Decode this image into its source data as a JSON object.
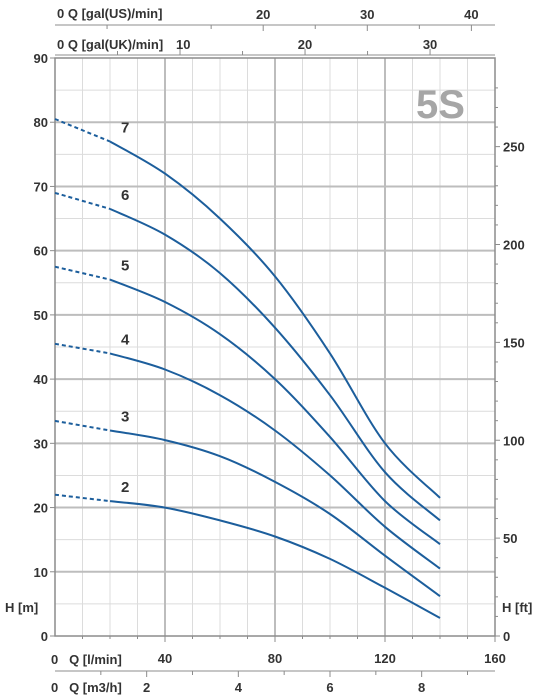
{
  "model": "5S",
  "colors": {
    "curve": "#1c5e9c",
    "grid": "#bdbdbd",
    "frame": "#8c8c8c",
    "minor_grid": "#dcdcdc",
    "text": "#333333",
    "model_label": "#a6a6a6"
  },
  "axes": {
    "top_us_label": "0 Q [gal(US)/min]",
    "top_uk_label": "0 Q [gal(UK)/min]",
    "left_label": "H [m]",
    "right_label": "H [ft]",
    "bottom_lmin_label": "0   Q [l/min]",
    "bottom_m3h_label": "0   Q [m3/h]"
  },
  "chart_data": {
    "type": "line",
    "title": "5S",
    "xlabel": "Q [l/min]",
    "ylabel": "H [m]",
    "xlim": [
      0,
      160
    ],
    "ylim": [
      0,
      90
    ],
    "grid": true,
    "x_ticks": [
      40,
      80,
      120,
      160
    ],
    "y_ticks": [
      0,
      10,
      20,
      30,
      40,
      50,
      60,
      70,
      80,
      90
    ],
    "ft_ticks": [
      0,
      50,
      100,
      150,
      200,
      250
    ],
    "m3h_ticks": [
      2,
      4,
      6,
      8
    ],
    "us_ticks": [
      20,
      30,
      40
    ],
    "uk_ticks": [
      10,
      20,
      30
    ],
    "series": [
      {
        "name": "2",
        "dashed_until": 20,
        "points": [
          [
            0,
            22
          ],
          [
            20,
            21
          ],
          [
            40,
            20
          ],
          [
            60,
            18
          ],
          [
            80,
            15.5
          ],
          [
            100,
            12
          ],
          [
            120,
            7.5
          ],
          [
            140,
            2.8
          ]
        ]
      },
      {
        "name": "3",
        "dashed_until": 20,
        "points": [
          [
            0,
            33.5
          ],
          [
            20,
            32
          ],
          [
            40,
            30.5
          ],
          [
            60,
            28
          ],
          [
            80,
            24
          ],
          [
            100,
            19
          ],
          [
            120,
            12.5
          ],
          [
            140,
            6.2
          ]
        ]
      },
      {
        "name": "4",
        "dashed_until": 20,
        "points": [
          [
            0,
            45.5
          ],
          [
            20,
            44
          ],
          [
            40,
            41.5
          ],
          [
            60,
            37.5
          ],
          [
            80,
            32
          ],
          [
            100,
            25
          ],
          [
            120,
            17
          ],
          [
            140,
            10.5
          ]
        ]
      },
      {
        "name": "5",
        "dashed_until": 20,
        "points": [
          [
            0,
            57.5
          ],
          [
            20,
            55.5
          ],
          [
            40,
            52
          ],
          [
            60,
            47
          ],
          [
            80,
            40
          ],
          [
            100,
            31
          ],
          [
            120,
            21
          ],
          [
            140,
            14.3
          ]
        ]
      },
      {
        "name": "6",
        "dashed_until": 20,
        "points": [
          [
            0,
            69
          ],
          [
            20,
            66.5
          ],
          [
            40,
            62.5
          ],
          [
            60,
            56.5
          ],
          [
            80,
            48
          ],
          [
            100,
            37.5
          ],
          [
            120,
            25.5
          ],
          [
            140,
            18
          ]
        ]
      },
      {
        "name": "7",
        "dashed_until": 20,
        "points": [
          [
            0,
            80.5
          ],
          [
            20,
            77
          ],
          [
            40,
            72
          ],
          [
            60,
            65
          ],
          [
            80,
            56
          ],
          [
            100,
            44
          ],
          [
            120,
            30
          ],
          [
            140,
            21.5
          ]
        ]
      }
    ]
  }
}
